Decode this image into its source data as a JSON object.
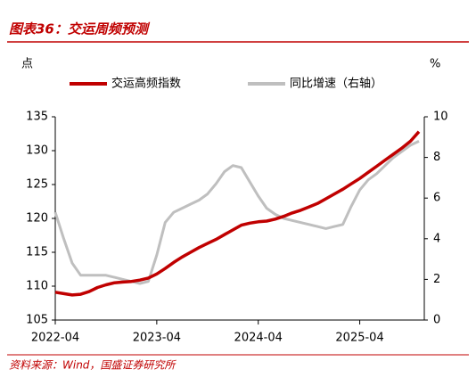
{
  "chart_data": {
    "type": "line",
    "title": "图表36：交运周频预测",
    "y_label": "点",
    "y2_label": "%",
    "source": "资料来源：Wind，国盛证券研究所",
    "x": [
      "2022-04",
      "2022-05",
      "2022-06",
      "2022-07",
      "2022-08",
      "2022-09",
      "2022-10",
      "2022-11",
      "2022-12",
      "2023-01",
      "2023-02",
      "2023-03",
      "2023-04",
      "2023-05",
      "2023-06",
      "2023-07",
      "2023-08",
      "2023-09",
      "2023-10",
      "2023-11",
      "2023-12",
      "2024-01",
      "2024-02",
      "2024-03",
      "2024-04",
      "2024-05",
      "2024-06",
      "2024-07",
      "2024-08",
      "2024-09",
      "2024-10",
      "2024-11",
      "2024-12",
      "2025-01",
      "2025-02",
      "2025-03",
      "2025-04",
      "2025-05",
      "2025-06",
      "2025-07",
      "2025-08",
      "2025-09",
      "2025-10",
      "2025-11"
    ],
    "xticks": [
      "2022-04",
      "2023-04",
      "2024-04",
      "2025-04"
    ],
    "ylim": [
      105,
      135
    ],
    "yticks": [
      105,
      110,
      115,
      120,
      125,
      130,
      135
    ],
    "y2lim": [
      0,
      10
    ],
    "y2ticks": [
      0,
      2,
      4,
      6,
      8,
      10
    ],
    "legend": "top",
    "series": [
      {
        "name": "交运高频指数",
        "color": "#c00000",
        "values": [
          109.1,
          108.9,
          108.7,
          108.8,
          109.2,
          109.8,
          110.2,
          110.5,
          110.6,
          110.7,
          110.9,
          111.2,
          111.8,
          112.6,
          113.5,
          114.3,
          115.0,
          115.7,
          116.3,
          116.9,
          117.6,
          118.3,
          119.0,
          119.3,
          119.5,
          119.6,
          119.9,
          120.3,
          120.8,
          121.2,
          121.7,
          122.2,
          122.9,
          123.6,
          124.3,
          125.1,
          125.9,
          126.8,
          127.7,
          128.6,
          129.5,
          130.4,
          131.4,
          132.8
        ]
      },
      {
        "name": "同比增速（右轴）",
        "color": "#bfbfbf",
        "axis": "y2",
        "values": [
          5.3,
          4.0,
          2.8,
          2.2,
          2.2,
          2.2,
          2.2,
          2.1,
          2.0,
          1.9,
          1.8,
          1.9,
          3.2,
          4.8,
          5.3,
          5.5,
          5.7,
          5.9,
          6.2,
          6.7,
          7.3,
          7.6,
          7.5,
          6.8,
          6.1,
          5.5,
          5.2,
          5.0,
          4.9,
          4.8,
          4.7,
          4.6,
          4.5,
          4.6,
          4.7,
          5.6,
          6.4,
          6.9,
          7.2,
          7.6,
          8.0,
          8.3,
          8.6,
          8.8
        ]
      }
    ]
  }
}
